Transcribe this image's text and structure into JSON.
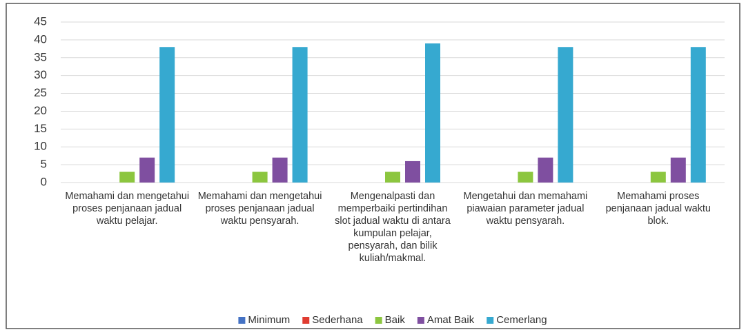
{
  "chart_data": {
    "type": "bar",
    "categories": [
      "Memahami dan mengetahui proses penjanaan jadual waktu pelajar.",
      "Memahami dan mengetahui proses penjanaan jadual waktu pensyarah.",
      "Mengenalpasti dan memperbaiki pertindihan slot jadual waktu di antara kumpulan pelajar, pensyarah, dan bilik kuliah/makmal.",
      "Mengetahui dan memahami piawaian parameter jadual waktu pensyarah.",
      "Memahami proses penjanaan jadual waktu blok."
    ],
    "series": [
      {
        "name": "Minimum",
        "color": "#4472c4",
        "values": [
          0,
          0,
          0,
          0,
          0
        ]
      },
      {
        "name": "Sederhana",
        "color": "#e03c31",
        "values": [
          0,
          0,
          0,
          0,
          0
        ]
      },
      {
        "name": "Baik",
        "color": "#8cc63f",
        "values": [
          3,
          3,
          3,
          3,
          3
        ]
      },
      {
        "name": "Amat Baik",
        "color": "#7f4fa0",
        "values": [
          7,
          7,
          6,
          7,
          7
        ]
      },
      {
        "name": "Cemerlang",
        "color": "#36a9d0",
        "values": [
          38,
          38,
          39,
          38,
          38
        ]
      }
    ],
    "ylim": [
      0,
      45
    ],
    "yticks": [
      0,
      5,
      10,
      15,
      20,
      25,
      30,
      35,
      40,
      45
    ],
    "grid": true,
    "legend": "bottom"
  }
}
